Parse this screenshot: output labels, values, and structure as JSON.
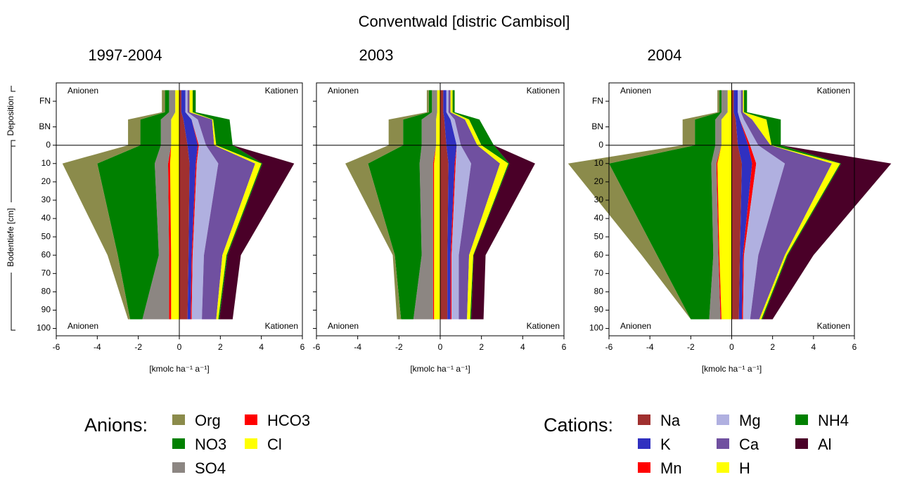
{
  "title": "Conventwald [distric Cambisol]",
  "y_label": "Bodentiefe [cm]",
  "deposition_label": "Deposition",
  "anions_title": "Anions:",
  "cations_title": "Cations:",
  "chart_data": [
    {
      "type": "stacked_area_profile",
      "title": "1997-2004",
      "x_label": "[kmolc ha⁻¹ a⁻¹]",
      "anion_label": "Anionen",
      "cation_label": "Kationen",
      "show_ytick_labels": true,
      "xlim": [
        -6,
        6
      ],
      "xticks": [
        -6,
        -4,
        -2,
        0,
        2,
        4,
        6
      ],
      "ylim": [
        -34,
        104
      ],
      "yticks": [
        {
          "value": -24,
          "label": "FN"
        },
        {
          "value": -10,
          "label": "BN"
        },
        0,
        10,
        20,
        30,
        40,
        50,
        60,
        70,
        80,
        90,
        100
      ],
      "y": [
        -30,
        -18,
        -14,
        0,
        10,
        60,
        95
      ],
      "series": [
        {
          "name": "Cl",
          "color": "#ffff00",
          "values": [
            -0.2,
            -0.2,
            -0.4,
            -0.4,
            -0.45,
            -0.4,
            -0.4
          ]
        },
        {
          "name": "HCO3",
          "color": "#ff0000",
          "values": [
            0,
            0,
            0,
            0,
            -0.1,
            -0.1,
            -0.1
          ]
        },
        {
          "name": "SO4",
          "color": "#8c8682",
          "values": [
            -0.3,
            -0.3,
            -0.5,
            -0.5,
            -0.65,
            -0.5,
            -1.3
          ]
        },
        {
          "name": "NO3",
          "color": "#008000",
          "values": [
            -0.2,
            -0.2,
            -1.0,
            -1.0,
            -2.8,
            -2.0,
            -0.6
          ]
        },
        {
          "name": "Org",
          "color": "#8b8b4b",
          "values": [
            -0.15,
            -0.15,
            -0.6,
            -0.6,
            -1.7,
            -0.5,
            -0.1
          ]
        },
        {
          "name": "Na",
          "color": "#a0302f",
          "values": [
            0.1,
            0.1,
            0.2,
            0.4,
            0.5,
            0.45,
            0.4
          ]
        },
        {
          "name": "K",
          "color": "#3030c0",
          "values": [
            0.2,
            0.2,
            0.4,
            0.5,
            0.3,
            0.15,
            0.15
          ]
        },
        {
          "name": "Mn",
          "color": "#ff0000",
          "values": [
            0,
            0,
            0,
            0.05,
            0.05,
            0.05,
            0.05
          ]
        },
        {
          "name": "Mg",
          "color": "#b0b0e0",
          "values": [
            0.1,
            0.1,
            0.3,
            0.35,
            1.05,
            0.55,
            0.5
          ]
        },
        {
          "name": "Ca",
          "color": "#7050a0",
          "values": [
            0.1,
            0.1,
            0.7,
            0.4,
            1.8,
            0.9,
            0.7
          ]
        },
        {
          "name": "H",
          "color": "#ffff00",
          "values": [
            0.15,
            0.15,
            0.05,
            0.1,
            0.3,
            0.2,
            0.1
          ]
        },
        {
          "name": "NH4",
          "color": "#008000",
          "values": [
            0.15,
            0.15,
            0.8,
            0.8,
            0.05,
            0.05,
            0.05
          ]
        },
        {
          "name": "Al",
          "color": "#4a0028",
          "values": [
            0,
            0,
            0,
            0,
            1.55,
            0.65,
            0.65
          ]
        }
      ]
    },
    {
      "type": "stacked_area_profile",
      "title": "2003",
      "x_label": "[kmolc ha⁻¹ a⁻¹]",
      "anion_label": "Anionen",
      "cation_label": "Kationen",
      "show_ytick_labels": false,
      "xlim": [
        -6,
        6
      ],
      "xticks": [
        -6,
        -4,
        -2,
        0,
        2,
        4,
        6
      ],
      "ylim": [
        -34,
        104
      ],
      "yticks": [
        {
          "value": -24,
          "label": "FN"
        },
        {
          "value": -10,
          "label": "BN"
        },
        0,
        10,
        20,
        30,
        40,
        50,
        60,
        70,
        80,
        90,
        100
      ],
      "y": [
        -30,
        -18,
        -14,
        0,
        10,
        60,
        95
      ],
      "series": [
        {
          "values": [
            -0.15,
            -0.15,
            -0.2,
            -0.2,
            -0.3,
            -0.3,
            -0.3
          ]
        },
        {
          "values": [
            0,
            0,
            0,
            0,
            -0.05,
            -0.05,
            -0.05
          ]
        },
        {
          "values": [
            -0.25,
            -0.25,
            -0.7,
            -0.7,
            -0.65,
            -0.55,
            -0.95
          ]
        },
        {
          "values": [
            -0.15,
            -0.15,
            -0.9,
            -0.9,
            -2.5,
            -1.3,
            -0.6
          ]
        },
        {
          "values": [
            -0.1,
            -0.1,
            -0.7,
            -0.7,
            -1.1,
            -0.1,
            -0.2
          ]
        },
        {
          "values": [
            0.15,
            0.15,
            0.2,
            0.3,
            0.4,
            0.35,
            0.35
          ]
        },
        {
          "values": [
            0.15,
            0.15,
            0.3,
            0.5,
            0.3,
            0.15,
            0.15
          ]
        },
        {
          "values": [
            0,
            0,
            0,
            0,
            0.05,
            0.05,
            0.05
          ]
        },
        {
          "values": [
            0.1,
            0.1,
            0.2,
            0.2,
            0.75,
            0.35,
            0.35
          ]
        },
        {
          "values": [
            0.1,
            0.1,
            0.5,
            0.8,
            1.4,
            0.5,
            0.4
          ]
        },
        {
          "values": [
            0.1,
            0.1,
            0.2,
            0.2,
            0.4,
            0.2,
            0.15
          ]
        },
        {
          "values": [
            0.1,
            0.1,
            0.5,
            0.6,
            0.05,
            0.02,
            0.05
          ]
        },
        {
          "values": [
            0,
            0,
            0,
            0,
            1.25,
            0.58,
            0.6
          ]
        }
      ]
    },
    {
      "type": "stacked_area_profile",
      "title": "2004",
      "x_label": "[kmolc ha⁻¹ a⁻¹]",
      "anion_label": "Anionen",
      "cation_label": "Kationen",
      "show_ytick_labels": true,
      "xlim": [
        -6,
        6
      ],
      "xticks": [
        -6,
        -4,
        -2,
        0,
        2,
        4,
        6
      ],
      "ylim": [
        -34,
        104
      ],
      "yticks": [
        {
          "value": -24,
          "label": "FN"
        },
        {
          "value": -10,
          "label": "BN"
        },
        0,
        10,
        20,
        30,
        40,
        50,
        60,
        70,
        80,
        90,
        100
      ],
      "y": [
        -30,
        -18,
        -14,
        0,
        10,
        60,
        95
      ],
      "series": [
        {
          "values": [
            -0.2,
            -0.2,
            -0.5,
            -0.5,
            -0.7,
            -0.6,
            -0.5
          ]
        },
        {
          "values": [
            0,
            0,
            0,
            0,
            -0.05,
            -0.05,
            -0.05
          ]
        },
        {
          "values": [
            -0.3,
            -0.3,
            -0.3,
            -0.3,
            -0.25,
            -0.25,
            -0.55
          ]
        },
        {
          "values": [
            -0.1,
            -0.1,
            -1.0,
            -1.0,
            -5.0,
            -2.75,
            -0.9
          ]
        },
        {
          "values": [
            -0.1,
            -0.1,
            -0.6,
            -0.6,
            -2.0,
            -0.75,
            0
          ]
        },
        {
          "values": [
            0.1,
            0.1,
            0.2,
            0.3,
            0.5,
            0.4,
            0.35
          ]
        },
        {
          "values": [
            0.2,
            0.2,
            0.2,
            0.5,
            0.5,
            0.15,
            0.15
          ]
        },
        {
          "values": [
            0,
            0,
            0,
            0.1,
            0.2,
            0.05,
            0.05
          ]
        },
        {
          "values": [
            0.15,
            0.15,
            0.2,
            0.4,
            1.4,
            0.7,
            0.35
          ]
        },
        {
          "values": [
            0.1,
            0.1,
            0.4,
            0.6,
            2.3,
            1.3,
            0.45
          ]
        },
        {
          "values": [
            0.05,
            0.05,
            0.7,
            0.05,
            0.4,
            0.1,
            0.1
          ]
        },
        {
          "values": [
            0.15,
            0.15,
            0.7,
            0.45,
            0.05,
            0.05,
            0.05
          ]
        },
        {
          "values": [
            0,
            0,
            0,
            0,
            2.45,
            1.25,
            0.5
          ]
        }
      ]
    }
  ]
}
